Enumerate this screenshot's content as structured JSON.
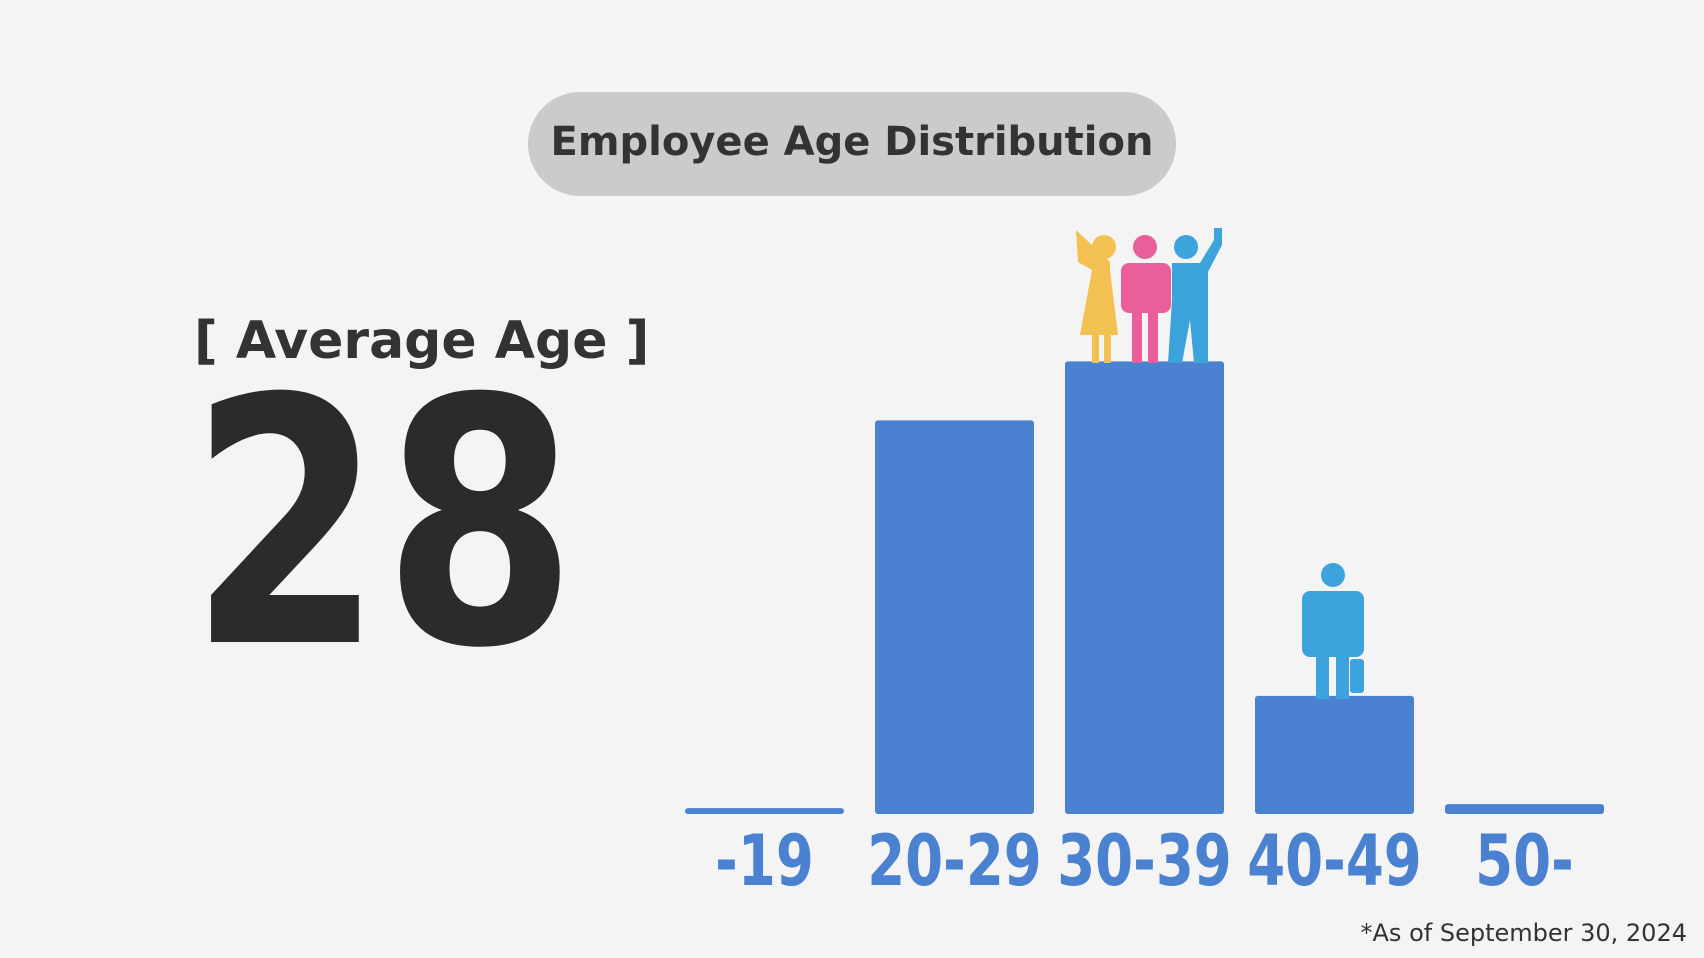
{
  "chart_data": {
    "type": "bar",
    "title": "Employee Age Distribution",
    "summary_label": "[ Average Age ]",
    "summary_value": 28,
    "categories": [
      "-19",
      "20-29",
      "30-39",
      "40-49",
      "50-"
    ],
    "values": [
      0.6,
      40,
      46,
      12,
      1
    ],
    "color": "#4a81d0",
    "ylim": [
      0,
      50
    ],
    "footnote": "*As of September 30, 2024"
  }
}
